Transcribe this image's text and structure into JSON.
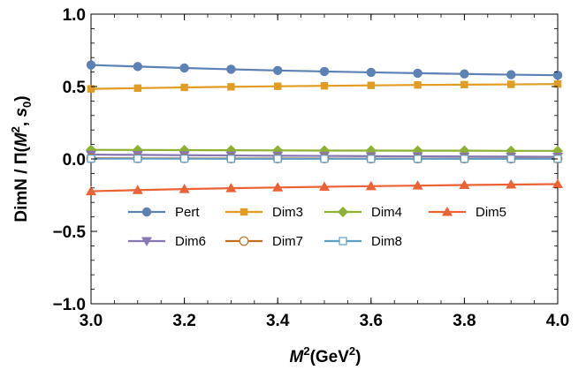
{
  "chart_data": {
    "type": "line",
    "title": "",
    "xlabel": {
      "base": "M",
      "sup": "2",
      "rest": "(GeV",
      "sup2": "2",
      "close": ")"
    },
    "ylabel": {
      "pre": "DimN / Π(",
      "m": "M",
      "msup": "2",
      "comma": ", ",
      "s": "s",
      "ssub": "0",
      "close": ")"
    },
    "xlim": [
      3.0,
      4.0
    ],
    "ylim": [
      -1.0,
      1.0
    ],
    "x_ticks": [
      "3.0",
      "3.2",
      "3.4",
      "3.6",
      "3.8",
      "4.0"
    ],
    "y_ticks": [
      "1.0",
      "0.5",
      "0.0",
      "−0.5",
      "−1.0"
    ],
    "x": [
      3.0,
      3.1,
      3.2,
      3.3,
      3.4,
      3.5,
      3.6,
      3.7,
      3.8,
      3.9,
      4.0
    ],
    "zero_line": true,
    "legend_placement": "lower-center",
    "series": [
      {
        "name": "Pert",
        "color": "#5e81b5",
        "marker": "circle",
        "values": [
          0.649,
          0.638,
          0.628,
          0.619,
          0.611,
          0.604,
          0.598,
          0.592,
          0.587,
          0.582,
          0.578
        ]
      },
      {
        "name": "Dim3",
        "color": "#e19c24",
        "marker": "square",
        "values": [
          0.484,
          0.489,
          0.494,
          0.498,
          0.502,
          0.505,
          0.508,
          0.511,
          0.513,
          0.515,
          0.517
        ]
      },
      {
        "name": "Dim4",
        "color": "#8fb032",
        "marker": "diamond",
        "values": [
          0.063,
          0.062,
          0.061,
          0.06,
          0.059,
          0.058,
          0.058,
          0.057,
          0.057,
          0.056,
          0.056
        ]
      },
      {
        "name": "Dim5",
        "color": "#eb6235",
        "marker": "triangle-up",
        "values": [
          -0.223,
          -0.215,
          -0.208,
          -0.202,
          -0.197,
          -0.192,
          -0.188,
          -0.184,
          -0.18,
          -0.177,
          -0.174
        ]
      },
      {
        "name": "Dim6",
        "color": "#8778b3",
        "marker": "triangle-down",
        "values": [
          0.03,
          0.028,
          0.026,
          0.024,
          0.022,
          0.021,
          0.019,
          0.018,
          0.017,
          0.016,
          0.015
        ]
      },
      {
        "name": "Dim7",
        "color": "#c56e1a",
        "marker": "open-circle",
        "values": [
          0.005,
          0.004,
          0.004,
          0.003,
          0.003,
          0.003,
          0.002,
          0.002,
          0.002,
          0.002,
          0.002
        ]
      },
      {
        "name": "Dim8",
        "color": "#5d9ec7",
        "marker": "open-square",
        "values": [
          0.002,
          0.002,
          0.002,
          0.001,
          0.001,
          0.001,
          0.001,
          0.001,
          0.001,
          0.001,
          0.001
        ]
      }
    ]
  }
}
